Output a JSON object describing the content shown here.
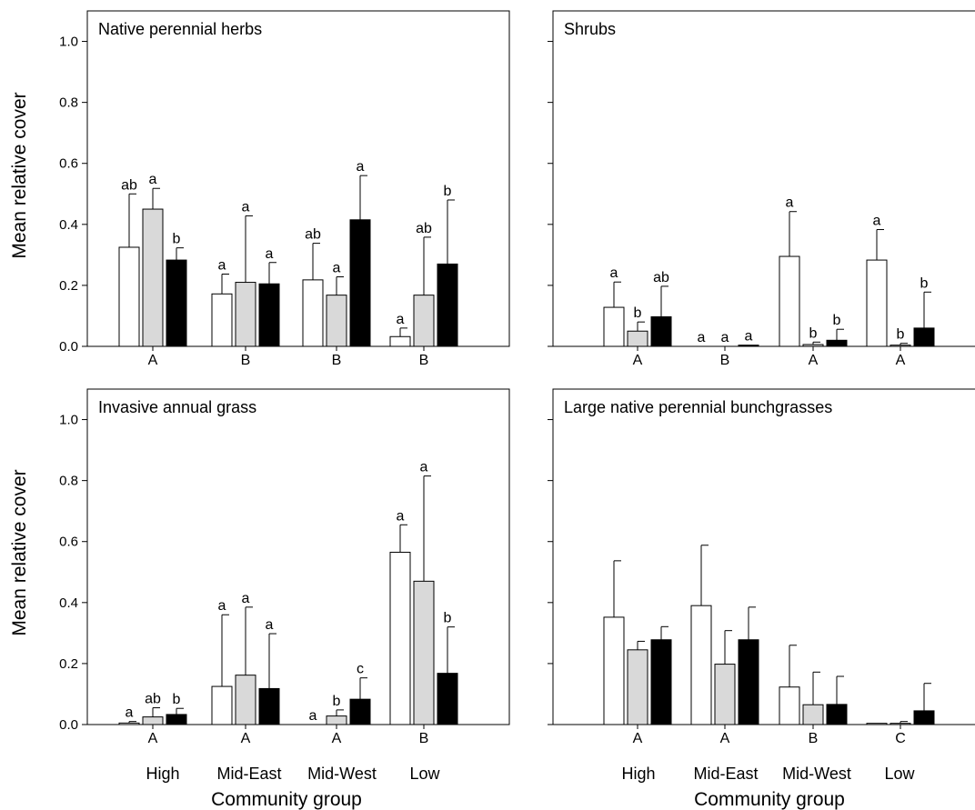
{
  "figure": {
    "y_axis_label": "Mean relative cover",
    "x_axis_label": "Community group",
    "categories": [
      "High",
      "Mid-East",
      "Mid-West",
      "Low"
    ],
    "colors": {
      "bar1": "#ffffff",
      "bar2": "#d9d9d9",
      "bar3": "#000000",
      "stroke": "#000000"
    }
  },
  "chart_data": [
    {
      "type": "bar",
      "title": "Native perennial herbs",
      "categories": [
        "High",
        "Mid-East",
        "Mid-West",
        "Low"
      ],
      "group_letters": [
        "A",
        "B",
        "B",
        "B"
      ],
      "ylim": [
        0,
        1.1
      ],
      "yticks": [
        "0.0",
        "0.2",
        "0.4",
        "0.6",
        "0.8",
        "1.0"
      ],
      "series": [
        {
          "values": [
            0.325,
            0.172,
            0.218,
            0.032
          ],
          "errors": [
            0.175,
            0.065,
            0.12,
            0.028
          ],
          "letters": [
            "ab",
            "a",
            "ab",
            "a"
          ]
        },
        {
          "values": [
            0.45,
            0.21,
            0.168,
            0.168
          ],
          "errors": [
            0.068,
            0.218,
            0.06,
            0.19
          ],
          "letters": [
            "a",
            "a",
            "a",
            "ab"
          ]
        },
        {
          "values": [
            0.283,
            0.205,
            0.415,
            0.27
          ],
          "errors": [
            0.04,
            0.07,
            0.145,
            0.21
          ],
          "letters": [
            "b",
            "a",
            "a",
            "b"
          ]
        }
      ]
    },
    {
      "type": "bar",
      "title": "Shrubs",
      "categories": [
        "High",
        "Mid-East",
        "Mid-West",
        "Low"
      ],
      "group_letters": [
        "A",
        "B",
        "A",
        "A"
      ],
      "ylim": [
        0,
        1.1
      ],
      "yticks": [],
      "series": [
        {
          "values": [
            0.128,
            0.0,
            0.295,
            0.283
          ],
          "errors": [
            0.083,
            0.0,
            0.147,
            0.1
          ],
          "letters": [
            "a",
            "a",
            "a",
            "a"
          ]
        },
        {
          "values": [
            0.05,
            0.0,
            0.006,
            0.004
          ],
          "errors": [
            0.03,
            0.0,
            0.008,
            0.006
          ],
          "letters": [
            "b",
            "a",
            "b",
            "b"
          ]
        },
        {
          "values": [
            0.097,
            0.004,
            0.02,
            0.06
          ],
          "errors": [
            0.1,
            0.0,
            0.036,
            0.118
          ],
          "letters": [
            "ab",
            "a",
            "b",
            "b"
          ]
        }
      ]
    },
    {
      "type": "bar",
      "title": "Invasive annual grass",
      "categories": [
        "High",
        "Mid-East",
        "Mid-West",
        "Low"
      ],
      "group_letters": [
        "A",
        "A",
        "A",
        "B"
      ],
      "ylim": [
        0,
        1.1
      ],
      "yticks": [
        "0.0",
        "0.2",
        "0.4",
        "0.6",
        "0.8",
        "1.0"
      ],
      "series": [
        {
          "values": [
            0.005,
            0.125,
            0.0,
            0.565
          ],
          "errors": [
            0.005,
            0.235,
            0.0,
            0.09
          ],
          "letters": [
            "a",
            "a",
            "a",
            "a"
          ]
        },
        {
          "values": [
            0.025,
            0.162,
            0.028,
            0.47
          ],
          "errors": [
            0.03,
            0.223,
            0.02,
            0.345
          ],
          "letters": [
            "ab",
            "a",
            "b",
            "a"
          ]
        },
        {
          "values": [
            0.033,
            0.118,
            0.083,
            0.168
          ],
          "errors": [
            0.02,
            0.18,
            0.07,
            0.152
          ],
          "letters": [
            "b",
            "a",
            "c",
            "b"
          ]
        }
      ]
    },
    {
      "type": "bar",
      "title": "Large native perennial bunchgrasses",
      "categories": [
        "High",
        "Mid-East",
        "Mid-West",
        "Low"
      ],
      "group_letters": [
        "A",
        "A",
        "B",
        "C"
      ],
      "ylim": [
        0,
        1.1
      ],
      "yticks": [],
      "series": [
        {
          "values": [
            0.352,
            0.39,
            0.123,
            0.004
          ],
          "errors": [
            0.185,
            0.198,
            0.137,
            0.0
          ],
          "letters": [
            "",
            "",
            "",
            ""
          ]
        },
        {
          "values": [
            0.245,
            0.198,
            0.065,
            0.004
          ],
          "errors": [
            0.028,
            0.11,
            0.107,
            0.006
          ],
          "letters": [
            "",
            "",
            "",
            ""
          ]
        },
        {
          "values": [
            0.278,
            0.278,
            0.066,
            0.045
          ],
          "errors": [
            0.043,
            0.107,
            0.092,
            0.09
          ],
          "letters": [
            "",
            "",
            "",
            ""
          ]
        }
      ]
    }
  ]
}
